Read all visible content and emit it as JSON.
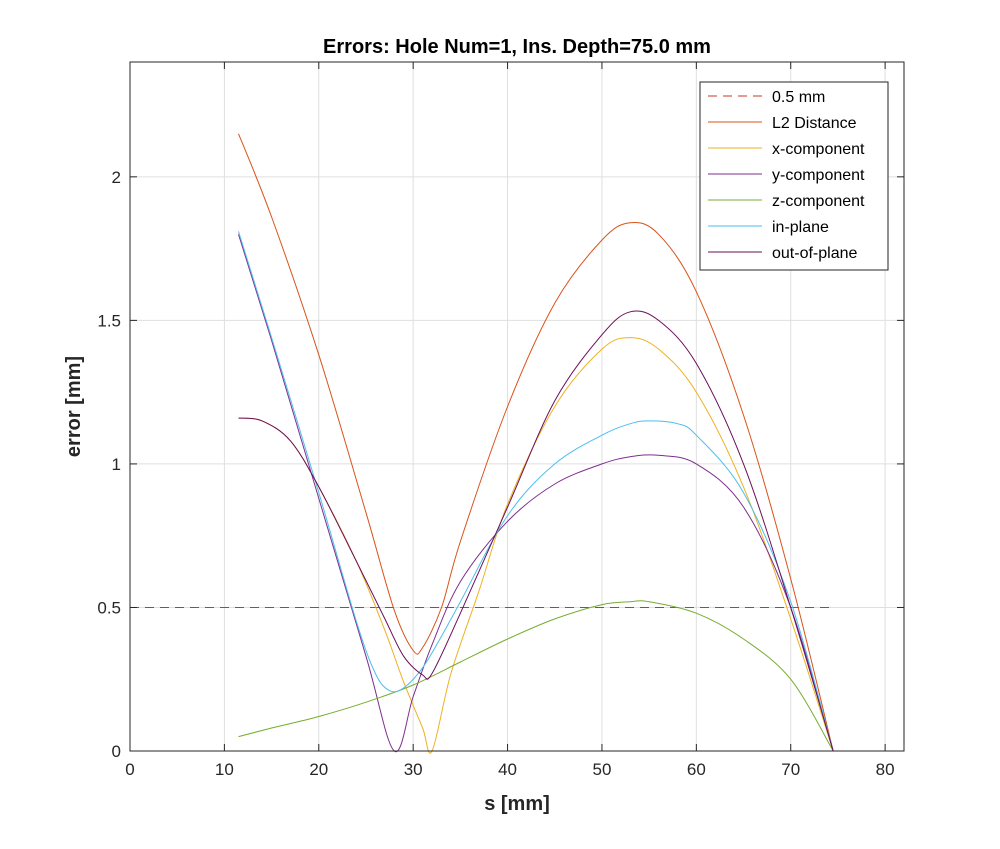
{
  "chart_data": {
    "type": "line",
    "title": "Errors: Hole Num=1, Ins. Depth=75.0 mm",
    "xlabel": "s [mm]",
    "ylabel": "error [mm]",
    "xlim": [
      0,
      82
    ],
    "ylim": [
      0,
      2.4
    ],
    "xticks": [
      0,
      10,
      20,
      30,
      40,
      50,
      60,
      70,
      80
    ],
    "yticks": [
      0,
      0.5,
      1,
      1.5,
      2
    ],
    "ytick_labels": [
      "0",
      "0.5",
      "1",
      "1.5",
      "2"
    ],
    "grid": true,
    "legend_position": "top-right",
    "series": [
      {
        "name": "0.5 mm",
        "color": "#c0392b",
        "dash": true,
        "x": [
          0,
          74.5
        ],
        "y": [
          0.5,
          0.5
        ]
      },
      {
        "name": "L2 Distance",
        "color": "#d95319",
        "x": [
          11.5,
          15,
          20,
          25,
          28,
          30,
          31,
          33,
          35,
          40,
          45,
          50,
          53,
          56,
          60,
          65,
          70,
          74.5
        ],
        "y": [
          2.15,
          1.86,
          1.38,
          0.83,
          0.49,
          0.35,
          0.36,
          0.5,
          0.73,
          1.2,
          1.56,
          1.78,
          1.84,
          1.8,
          1.6,
          1.17,
          0.6,
          0.0
        ]
      },
      {
        "name": "x-component",
        "color": "#edb120",
        "x": [
          11.5,
          14,
          17,
          20,
          24,
          27,
          29,
          31,
          32,
          34,
          37,
          40,
          45,
          50,
          53,
          56,
          60,
          65,
          70,
          74.5
        ],
        "y": [
          1.16,
          1.15,
          1.08,
          0.92,
          0.66,
          0.42,
          0.24,
          0.08,
          0.0,
          0.27,
          0.56,
          0.86,
          1.2,
          1.4,
          1.44,
          1.4,
          1.25,
          0.92,
          0.46,
          0.0
        ]
      },
      {
        "name": "y-component",
        "color": "#7e2f8e",
        "x": [
          11.5,
          15,
          20,
          25,
          28,
          30,
          32,
          35,
          40,
          45,
          50,
          53,
          56,
          60,
          65,
          70,
          74.5
        ],
        "y": [
          1.8,
          1.43,
          0.88,
          0.33,
          0.0,
          0.19,
          0.37,
          0.59,
          0.8,
          0.93,
          1.0,
          1.025,
          1.03,
          1.0,
          0.85,
          0.5,
          0.0
        ]
      },
      {
        "name": "z-component",
        "color": "#77ac30",
        "x": [
          11.5,
          15,
          20,
          25,
          30,
          35,
          40,
          45,
          50,
          53,
          55,
          60,
          65,
          70,
          74.5
        ],
        "y": [
          0.05,
          0.08,
          0.12,
          0.17,
          0.23,
          0.31,
          0.39,
          0.46,
          0.51,
          0.52,
          0.52,
          0.48,
          0.39,
          0.25,
          0.0
        ]
      },
      {
        "name": "in-plane",
        "color": "#4dbeee",
        "x": [
          11.5,
          15,
          20,
          24,
          26,
          27.5,
          29,
          31,
          33,
          35,
          40,
          45,
          50,
          53,
          55,
          58,
          60,
          65,
          70,
          74.5
        ],
        "y": [
          1.81,
          1.44,
          0.9,
          0.45,
          0.27,
          0.21,
          0.22,
          0.29,
          0.4,
          0.52,
          0.82,
          1.0,
          1.1,
          1.14,
          1.15,
          1.14,
          1.1,
          0.9,
          0.52,
          0.0
        ]
      },
      {
        "name": "out-of-plane",
        "color": "#6b0f5a",
        "x": [
          11.5,
          14,
          17,
          20,
          24,
          27,
          29,
          31,
          32,
          35,
          40,
          45,
          50,
          53,
          56,
          60,
          65,
          70,
          74.5
        ],
        "y": [
          1.16,
          1.15,
          1.08,
          0.92,
          0.66,
          0.46,
          0.33,
          0.265,
          0.27,
          0.48,
          0.85,
          1.22,
          1.45,
          1.53,
          1.5,
          1.35,
          1.0,
          0.5,
          0.0
        ]
      }
    ]
  }
}
